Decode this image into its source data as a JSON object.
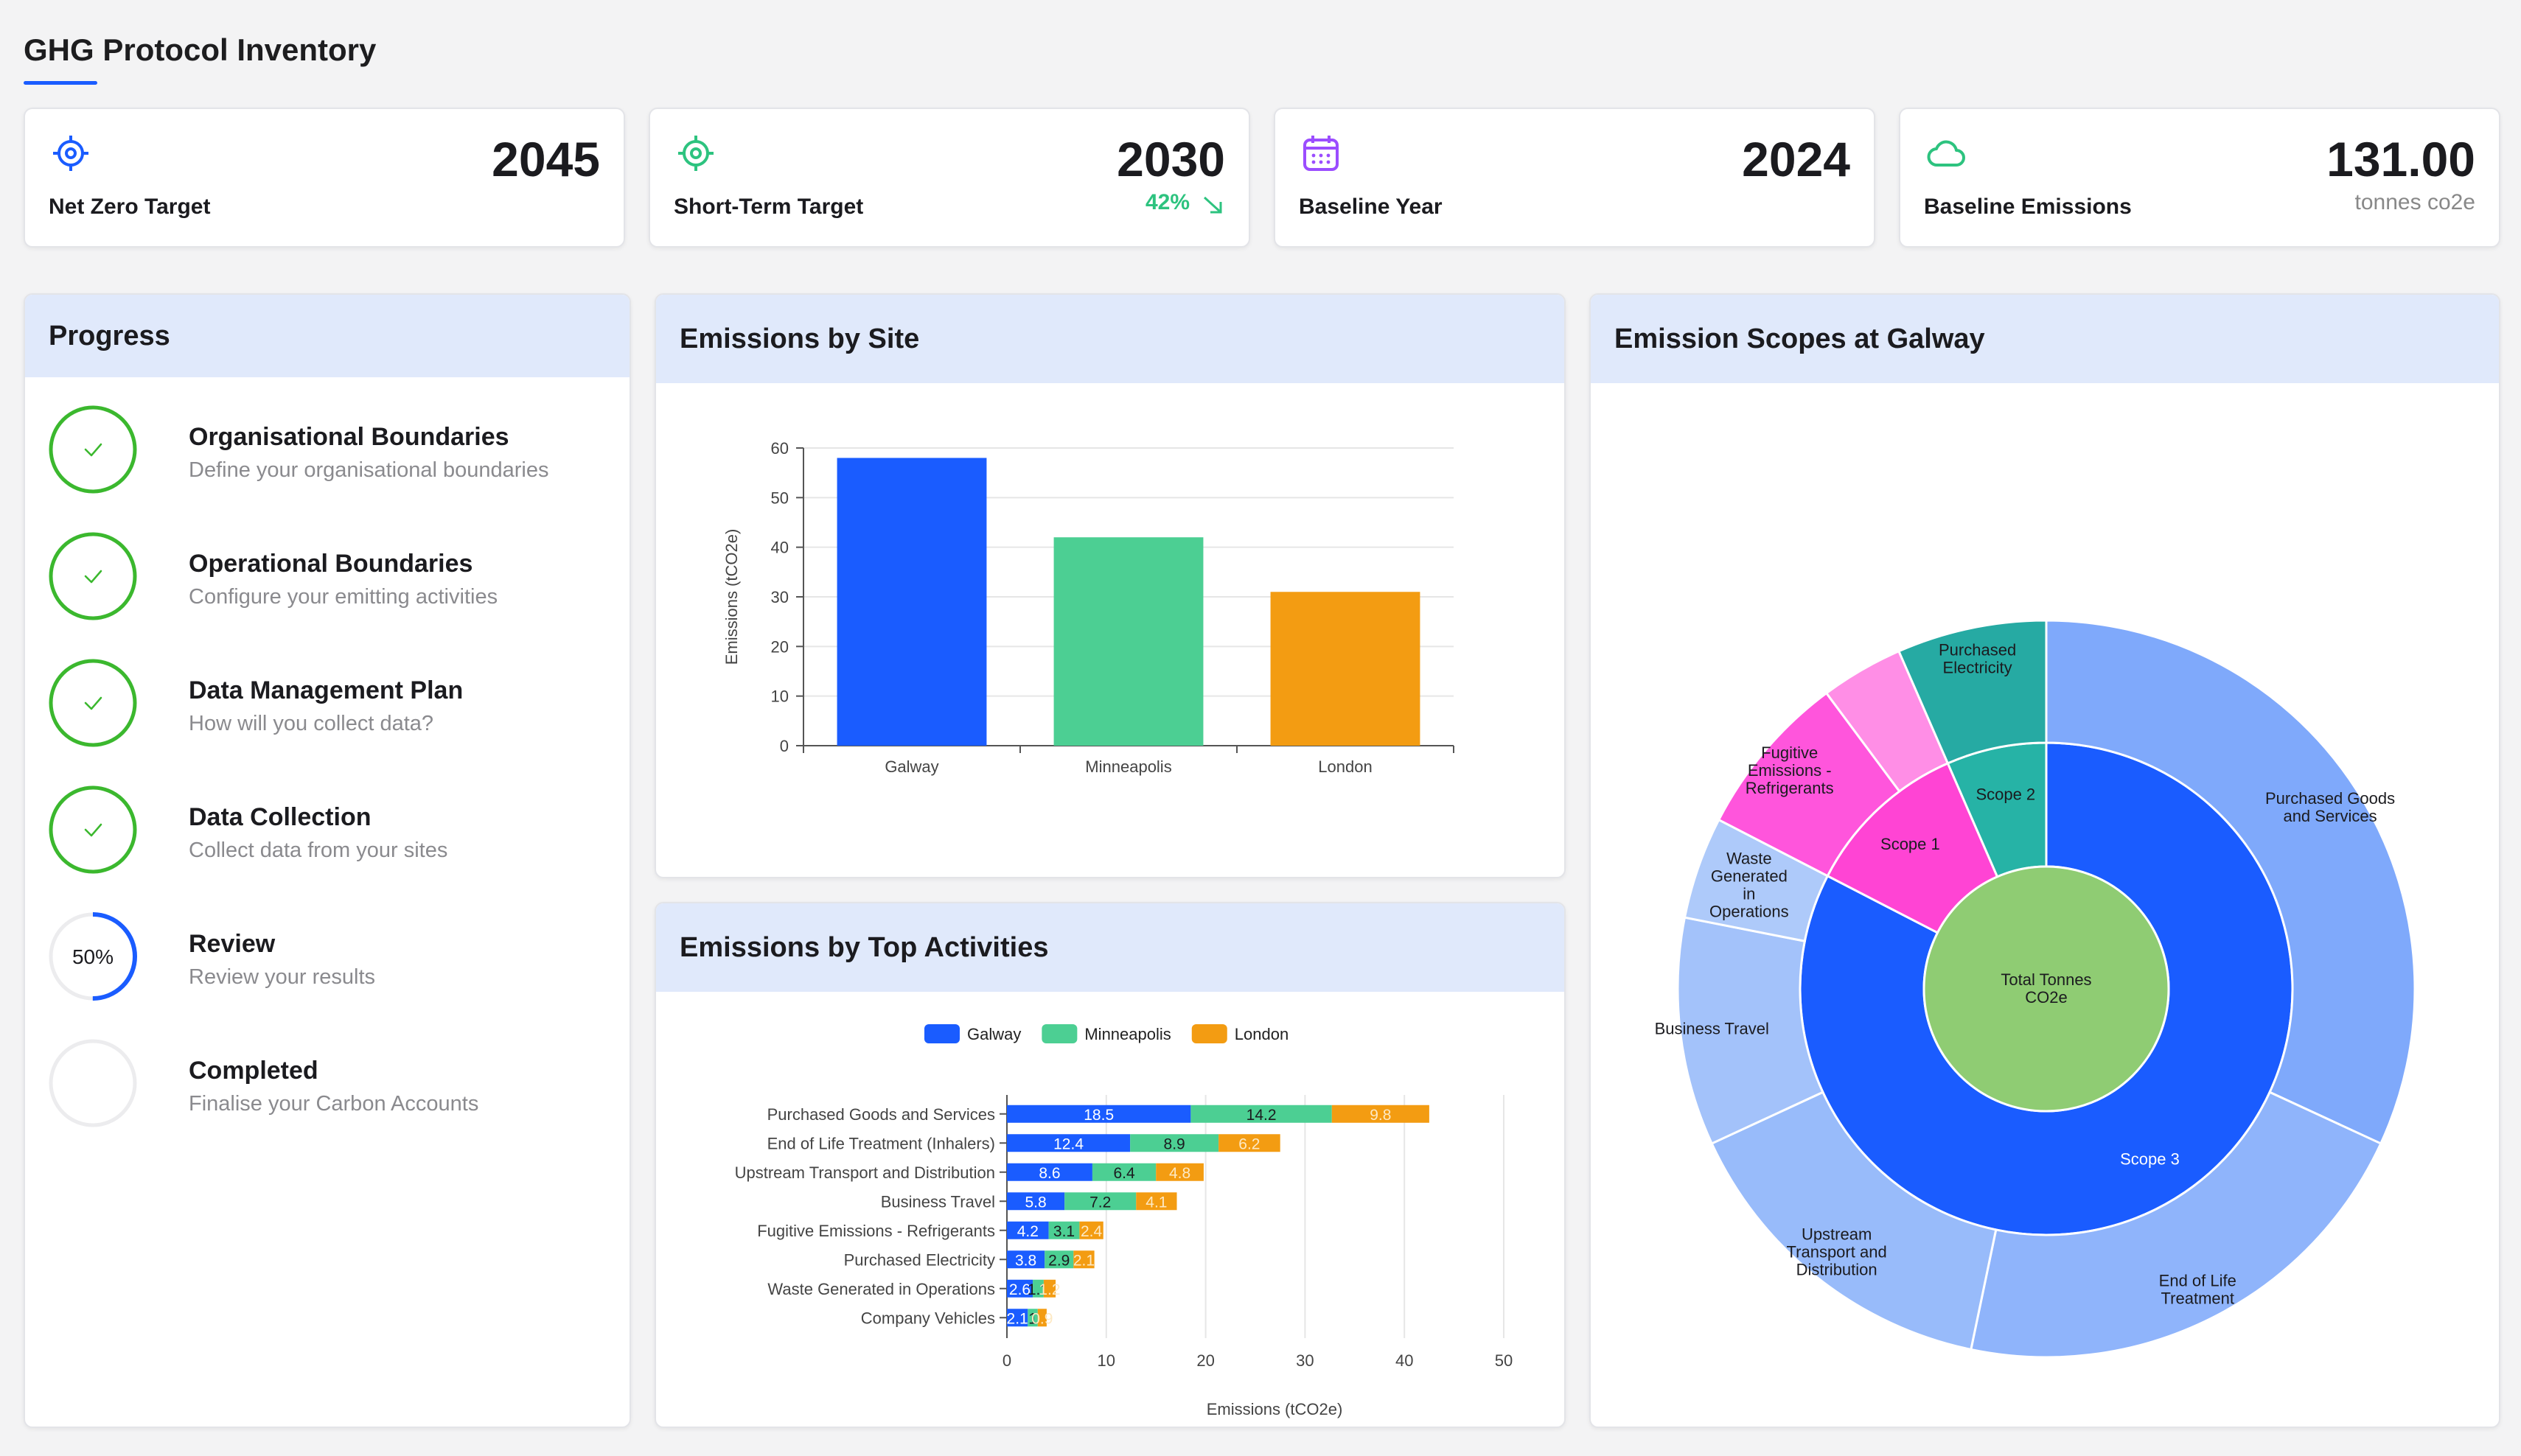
{
  "page": {
    "title": "GHG Protocol Inventory"
  },
  "kpis": [
    {
      "label": "Net Zero Target",
      "value": "2045",
      "icon": "target-icon",
      "color": "#1a5cff"
    },
    {
      "label": "Short-Term Target",
      "value": "2030",
      "sub": "42%",
      "trend": "trend-down-icon",
      "icon": "target-icon",
      "color": "#2dc37f"
    },
    {
      "label": "Baseline Year",
      "value": "2024",
      "icon": "calendar-icon",
      "color": "#9b4dff"
    },
    {
      "label": "Baseline Emissions",
      "value": "131.00",
      "sub": "tonnes co2e",
      "icon": "cloud-icon",
      "color": "#2dc37f"
    }
  ],
  "progress": {
    "title": "Progress",
    "steps": [
      {
        "title": "Organisational Boundaries",
        "desc": "Define your organisational boundaries",
        "status": "complete"
      },
      {
        "title": "Operational Boundaries",
        "desc": "Configure your emitting activities",
        "status": "complete"
      },
      {
        "title": "Data Management Plan",
        "desc": "How will you collect data?",
        "status": "complete"
      },
      {
        "title": "Data Collection",
        "desc": "Collect data from your sites",
        "status": "complete"
      },
      {
        "title": "Review",
        "desc": "Review your results",
        "status": "in-progress",
        "percent_text": "50%",
        "percent": 50
      },
      {
        "title": "Completed",
        "desc": "Finalise your Carbon Accounts",
        "status": "pending"
      }
    ]
  },
  "site_chart_panel": {
    "title": "Emissions by Site"
  },
  "activities_chart_panel": {
    "title": "Emissions by Top Activities"
  },
  "scopes_chart_panel": {
    "title": "Emission Scopes at Galway"
  },
  "chart_data": [
    {
      "type": "bar",
      "title": "Emissions by Site",
      "ylabel": "Emissions (tCO2e)",
      "xlabel": "",
      "categories": [
        "Galway",
        "Minneapolis",
        "London"
      ],
      "values": [
        58,
        42,
        31
      ],
      "colors": [
        "#1a5cff",
        "#4ccf93",
        "#f39c12"
      ],
      "ylim": [
        0,
        60
      ],
      "yticks": [
        0,
        10,
        20,
        30,
        40,
        50,
        60
      ],
      "grid": true
    },
    {
      "type": "bar",
      "orientation": "horizontal",
      "stacked": true,
      "title": "Emissions by Top Activities",
      "xlabel": "Emissions (tCO2e)",
      "categories": [
        "Purchased Goods and Services",
        "End of Life Treatment (Inhalers)",
        "Upstream Transport and Distribution",
        "Business Travel",
        "Fugitive Emissions - Refrigerants",
        "Purchased Electricity",
        "Waste Generated in Operations",
        "Company Vehicles"
      ],
      "series": [
        {
          "name": "Galway",
          "color": "#1a5cff",
          "values": [
            18.5,
            12.4,
            8.6,
            5.8,
            4.2,
            3.8,
            2.6,
            2.1
          ]
        },
        {
          "name": "Minneapolis",
          "color": "#4ccf93",
          "values": [
            14.2,
            8.9,
            6.4,
            7.2,
            3.1,
            2.9,
            1.1,
            1.0
          ]
        },
        {
          "name": "London",
          "color": "#f39c12",
          "values": [
            9.8,
            6.2,
            4.8,
            4.1,
            2.4,
            2.1,
            1.2,
            0.9
          ]
        }
      ],
      "xlim": [
        0,
        50
      ],
      "xticks": [
        0,
        10,
        20,
        30,
        40,
        50
      ],
      "legend": "top",
      "grid": true
    },
    {
      "type": "sunburst",
      "title": "Emission Scopes at Galway",
      "center": {
        "label": "Total Tonnes CO2e",
        "color": "#8fcc73"
      },
      "scopes": [
        {
          "name": "Scope 1",
          "value": 6.3,
          "color": "#ff44d4",
          "children": [
            {
              "name": "Company Vehicles",
              "value": 2.1,
              "color": "#ff8ee6",
              "label": ""
            },
            {
              "name": "Fugitive Emissions - Refrigerants",
              "value": 4.2,
              "color": "#ff55dc",
              "label": "Fugitive Emissions - Refrigerants"
            }
          ]
        },
        {
          "name": "Scope 2",
          "value": 3.8,
          "color": "#26b3a6",
          "children": [
            {
              "name": "Purchased Electricity",
              "value": 3.8,
              "color": "#26aaa3",
              "label": "Purchased Electricity"
            }
          ]
        },
        {
          "name": "Scope 3",
          "value": 47.9,
          "color": "#1a5cff",
          "children": [
            {
              "name": "Purchased Goods and Services",
              "value": 18.5,
              "color": "#7fa9fb",
              "label": "Purchased Goods and Services"
            },
            {
              "name": "End of Life Treatment",
              "value": 12.4,
              "color": "#8fb4fb",
              "label": "End of Life Treatment"
            },
            {
              "name": "Upstream Transport and Distribution",
              "value": 8.6,
              "color": "#98bbfa",
              "label": "Upstream Transport and Distribution"
            },
            {
              "name": "Business Travel",
              "value": 5.8,
              "color": "#a3c2fa",
              "label": "Business Travel"
            },
            {
              "name": "Waste Generated in Operations",
              "value": 2.6,
              "color": "#aecafa",
              "label": "Waste Generated in Operations"
            }
          ]
        }
      ]
    }
  ]
}
